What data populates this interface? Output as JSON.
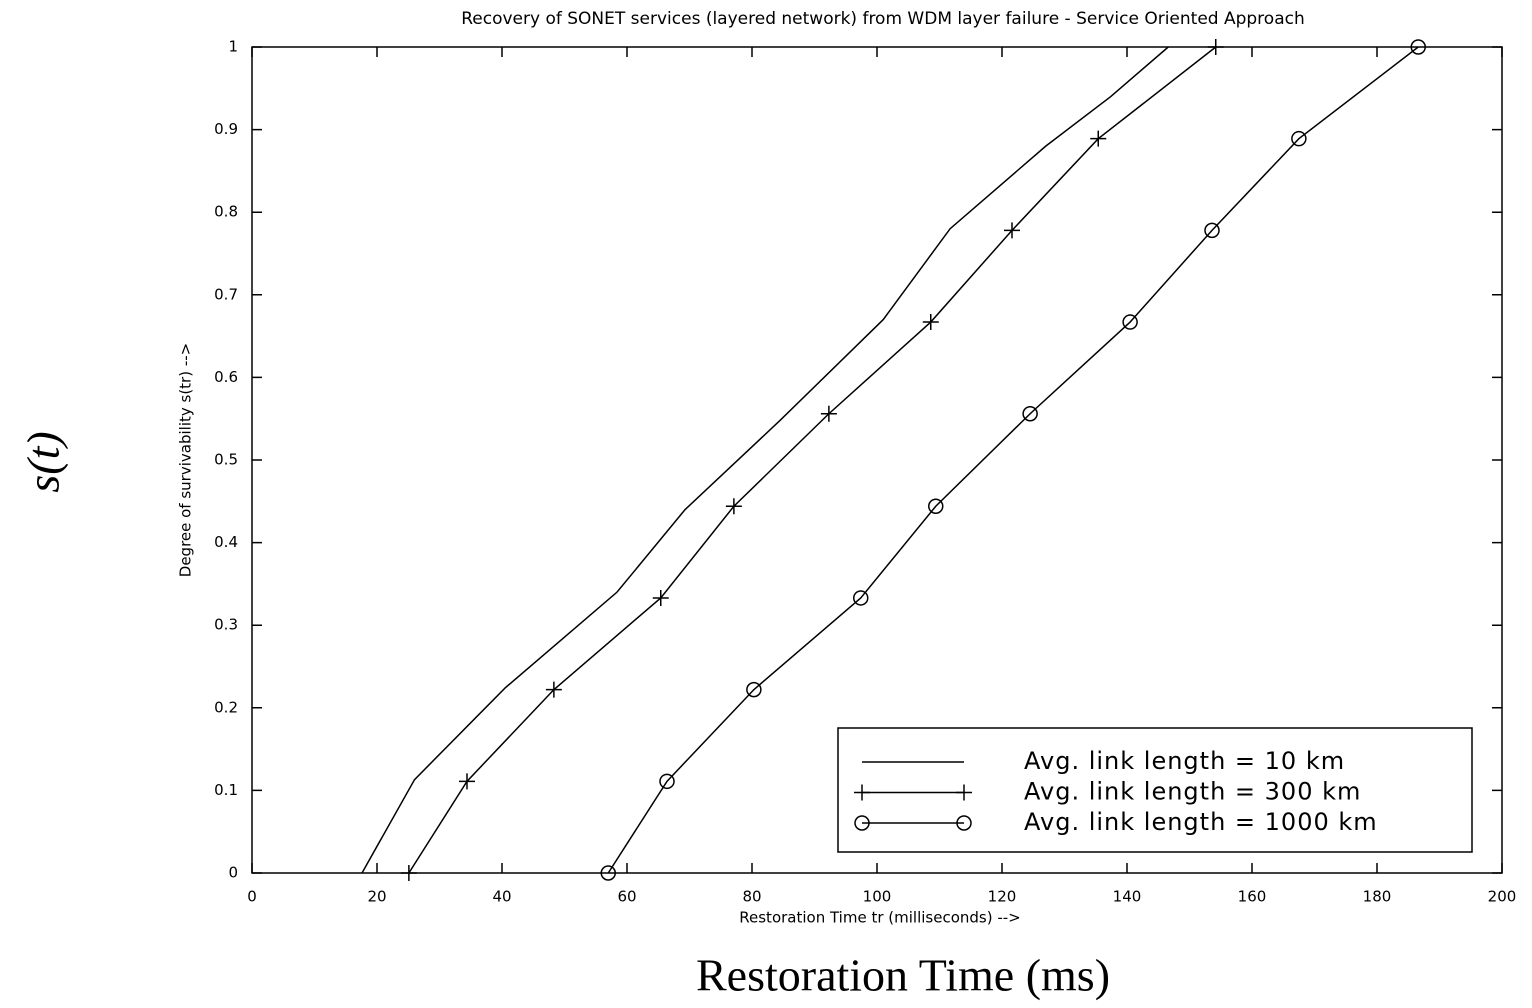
{
  "chart_data": {
    "type": "line",
    "title": "Recovery of SONET services (layered network) from WDM layer failure - Service Oriented Approach",
    "xlabel": "Restoration Time tr (milliseconds) -->",
    "ylabel": "Degree of survivability s(tr) -->",
    "annotations": [
      "s(t)",
      "Restoration Time (ms)"
    ],
    "xlim": [
      0,
      200
    ],
    "xticks": [
      0,
      20,
      40,
      60,
      80,
      100,
      120,
      140,
      160,
      180,
      200
    ],
    "ylim": [
      0,
      1
    ],
    "yticks": [
      0,
      0.1,
      0.2,
      0.3,
      0.4,
      0.5,
      0.6,
      0.7,
      0.8,
      0.9,
      1
    ],
    "legend": "lower right",
    "series": [
      {
        "name": "Avg. link length = 10 km",
        "color": "#000000",
        "marker": "none",
        "x": [
          17.6,
          26,
          40.5,
          58.4,
          69.3,
          84.5,
          101,
          111.7,
          127,
          137.4,
          146.6
        ],
        "values": [
          0,
          0.113,
          0.224,
          0.34,
          0.44,
          0.548,
          0.67,
          0.78,
          0.88,
          0.94,
          1
        ]
      },
      {
        "name": "Avg. link length = 300 km",
        "color": "#000000",
        "marker": "plus",
        "x": [
          25.1,
          34.4,
          48.3,
          65.4,
          77.1,
          92.3,
          108.6,
          121.6,
          135.4,
          154.2
        ],
        "values": [
          0,
          0.111,
          0.222,
          0.333,
          0.444,
          0.556,
          0.667,
          0.778,
          0.889,
          1
        ]
      },
      {
        "name": "Avg. link length = 1000 km",
        "color": "#000000",
        "marker": "circle",
        "x": [
          57,
          66.4,
          80.3,
          97.4,
          109.4,
          124.5,
          140.5,
          153.6,
          167.5,
          186.6
        ],
        "values": [
          0,
          0.111,
          0.222,
          0.333,
          0.444,
          0.556,
          0.667,
          0.778,
          0.889,
          1
        ]
      }
    ]
  }
}
